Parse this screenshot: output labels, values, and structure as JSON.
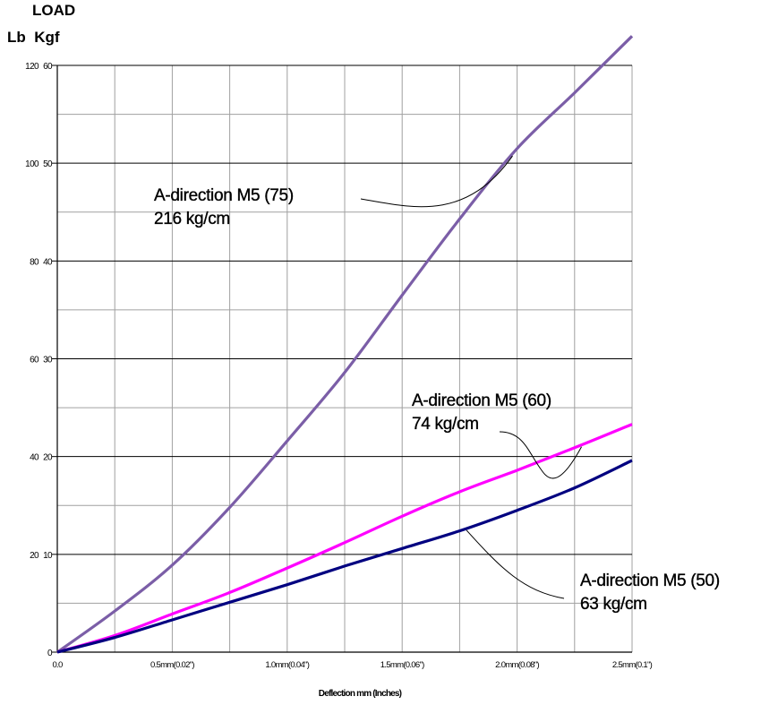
{
  "chart_data": {
    "type": "line",
    "header": {
      "line1": "LOAD",
      "line2": "Lb  Kgf"
    },
    "xlabel": "Deflection mm (Inches)",
    "x_unit": "mm",
    "xlim": [
      0,
      2.5
    ],
    "x_ticks": [
      {
        "value": 0,
        "label": "0.0"
      },
      {
        "value": 0.5,
        "label": "0.5mm(0.02\")"
      },
      {
        "value": 1.0,
        "label": "1.0mm(0.04\")"
      },
      {
        "value": 1.5,
        "label": "1.5mm(0.06\")"
      },
      {
        "value": 2.0,
        "label": "2.0mm(0.08\")"
      },
      {
        "value": 2.5,
        "label": "2.5mm(0.1\")"
      }
    ],
    "y_kgf_lim": [
      0,
      60
    ],
    "y_kgf_ticks": [
      0,
      10,
      20,
      30,
      40,
      50,
      60
    ],
    "y_lb_ticks": [
      0,
      20,
      40,
      60,
      80,
      100,
      120
    ],
    "grid": true,
    "series": [
      {
        "color": "#7b5ea7",
        "unit": "kgf",
        "x": [
          0,
          0.25,
          0.5,
          0.75,
          1.0,
          1.25,
          1.5,
          1.75,
          2.0,
          2.25,
          2.5
        ],
        "y": [
          0,
          4.2,
          8.9,
          14.8,
          21.6,
          28.6,
          36.5,
          44.3,
          51.5,
          57.2,
          63.0
        ]
      },
      {
        "color": "#ff00ff",
        "unit": "kgf",
        "x": [
          0,
          0.25,
          0.5,
          0.75,
          1.0,
          1.25,
          1.5,
          1.75,
          2.0,
          2.25,
          2.5
        ],
        "y": [
          0,
          1.7,
          3.9,
          6.1,
          8.6,
          11.2,
          13.9,
          16.4,
          18.6,
          20.9,
          23.3
        ]
      },
      {
        "color": "#000080",
        "unit": "kgf",
        "x": [
          0,
          0.25,
          0.5,
          0.75,
          1.0,
          1.25,
          1.5,
          1.75,
          2.0,
          2.25,
          2.5
        ],
        "y": [
          0,
          1.5,
          3.3,
          5.1,
          6.9,
          8.8,
          10.6,
          12.4,
          14.5,
          16.8,
          19.6
        ]
      }
    ],
    "annotations": [
      {
        "line1": "A-direction M5 (75)",
        "line2": "216 kg/cm",
        "series_index": 0
      },
      {
        "line1": "A-direction M5 (60)",
        "line2": "74 kg/cm",
        "series_index": 1
      },
      {
        "line1": "A-direction M5 (50)",
        "line2": "63 kg/cm",
        "series_index": 2
      }
    ]
  }
}
